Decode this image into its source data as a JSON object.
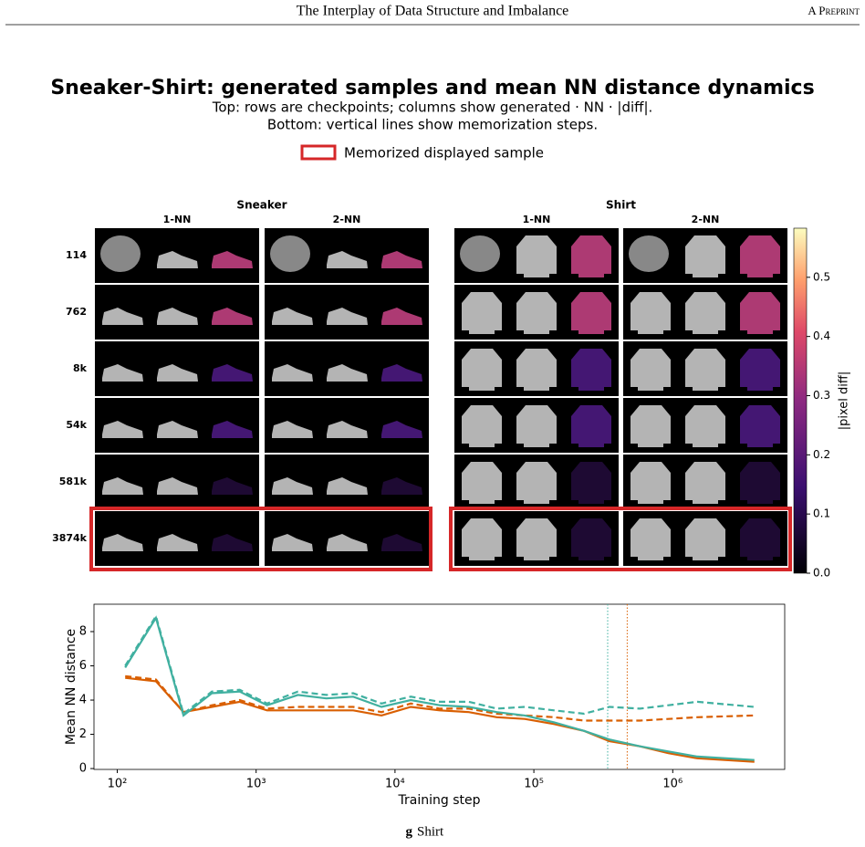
{
  "header": {
    "title": "The Interplay of Data Structure and Imbalance",
    "right": "A Preprint"
  },
  "figure": {
    "title": "Sneaker-Shirt: generated samples and mean NN distance dynamics",
    "subtitle": [
      "Top: rows are checkpoints; columns show generated · NN · |diff|.",
      "Bottom: vertical lines show memorization steps."
    ],
    "legend": "Memorized displayed sample",
    "legend_color": "#d62728",
    "groups": [
      {
        "name": "Sneaker",
        "color": "#d95f02"
      },
      {
        "name": "Shirt",
        "color": "#3aa89a"
      }
    ],
    "columns": [
      "1-NN",
      "2-NN"
    ],
    "rows": [
      "114",
      "762",
      "8k",
      "54k",
      "581k",
      "3874k"
    ],
    "memorized_rows": [
      5
    ],
    "colorbar": {
      "label": "|pixel diff|",
      "lim": [
        0,
        0.583
      ],
      "ticks": [
        {
          "value": 0,
          "label": "0.0"
        },
        {
          "value": 0.1,
          "label": "0.1"
        },
        {
          "value": 0.2,
          "label": "0.2"
        },
        {
          "value": 0.3,
          "label": "0.3"
        },
        {
          "value": 0.4,
          "label": "0.4"
        },
        {
          "value": 0.5,
          "label": "0.5"
        }
      ]
    }
  },
  "chart_data": {
    "type": "line",
    "xlabel": "Training step",
    "ylabel": "Mean NN distance",
    "xscale": "log",
    "x": [
      114,
      190,
      300,
      480,
      762,
      1200,
      2000,
      3200,
      5000,
      8000,
      13000,
      21000,
      34000,
      54000,
      86000,
      140000,
      230000,
      350000,
      581000,
      930000,
      1500000,
      3874000
    ],
    "series": [
      {
        "name": "Sneaker 1-NN",
        "color": "#d95f02",
        "linestyle": "solid",
        "values": [
          5.3,
          5.1,
          3.3,
          3.6,
          3.9,
          3.4,
          3.4,
          3.4,
          3.4,
          3.1,
          3.6,
          3.4,
          3.3,
          3.0,
          2.9,
          2.6,
          2.2,
          1.6,
          1.3,
          0.9,
          0.6,
          0.4
        ]
      },
      {
        "name": "Sneaker 2-NN",
        "color": "#d95f02",
        "linestyle": "dashed",
        "values": [
          5.4,
          5.2,
          3.3,
          3.7,
          4.0,
          3.5,
          3.6,
          3.6,
          3.6,
          3.3,
          3.8,
          3.5,
          3.5,
          3.2,
          3.1,
          3.0,
          2.8,
          2.8,
          2.8,
          2.9,
          3.0,
          3.1
        ]
      },
      {
        "name": "Shirt 1-NN",
        "color": "#40b0a0",
        "linestyle": "solid",
        "values": [
          5.9,
          8.8,
          3.1,
          4.4,
          4.5,
          3.7,
          4.3,
          4.1,
          4.2,
          3.6,
          4.0,
          3.7,
          3.6,
          3.3,
          3.1,
          2.7,
          2.2,
          1.7,
          1.3,
          1.0,
          0.7,
          0.5
        ]
      },
      {
        "name": "Shirt 2-NN",
        "color": "#40b0a0",
        "linestyle": "dashed",
        "values": [
          6.0,
          8.9,
          3.2,
          4.5,
          4.6,
          3.8,
          4.5,
          4.3,
          4.4,
          3.8,
          4.2,
          3.9,
          3.9,
          3.5,
          3.6,
          3.4,
          3.2,
          3.6,
          3.5,
          3.7,
          3.9,
          3.6
        ]
      }
    ],
    "vlines": [
      {
        "x": 340000,
        "color": "#40b0a0"
      },
      {
        "x": 470000,
        "color": "#d95f02"
      }
    ],
    "xlim": [
      68,
      6400000
    ],
    "ylim": [
      -0.05,
      9.6
    ],
    "xticks": [
      {
        "value": 100,
        "label": "10²"
      },
      {
        "value": 1000,
        "label": "10³"
      },
      {
        "value": 10000,
        "label": "10⁴"
      },
      {
        "value": 100000,
        "label": "10⁵"
      },
      {
        "value": 1000000,
        "label": "10⁶"
      }
    ],
    "yticks": [
      0,
      2,
      4,
      6,
      8
    ]
  },
  "caption": {
    "letter": "g",
    "text": "Shirt"
  }
}
